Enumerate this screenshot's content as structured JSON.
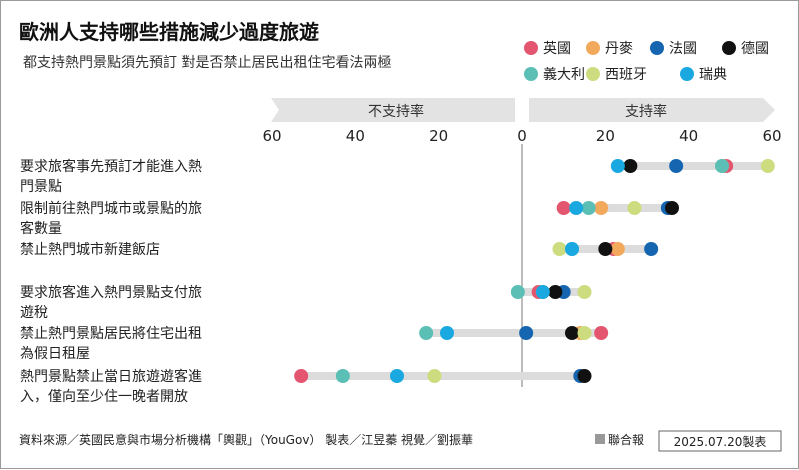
{
  "header": {
    "title": "歐洲人支持哪些措施減少過度旅遊",
    "subtitle": "都支持熱門景點須先預訂  對是否禁止居民出租住宅看法兩極"
  },
  "colors": {
    "英國": "#e4566f",
    "丹麥": "#f3a95c",
    "法國": "#1565b0",
    "德國": "#111111",
    "義大利": "#5bbfb5",
    "西班牙": "#cddc7f",
    "瑞典": "#1aa8e0",
    "track": "#dcdcdc",
    "banner": "#e3e3e3"
  },
  "chart_data": {
    "type": "scatter",
    "title": "歐洲人支持哪些措施減少過度旅遊",
    "subtitle": "都支持熱門景點須先預訂  對是否禁止居民出租住宅看法兩極",
    "x_axis": {
      "range": [
        -60,
        60
      ],
      "ticks": [
        -60,
        -40,
        -20,
        0,
        20,
        40,
        60
      ],
      "tick_labels": [
        "60",
        "40",
        "20",
        "0",
        "20",
        "40",
        "60"
      ],
      "left_banner": "不支持率",
      "right_banner": "支持率"
    },
    "legend": {
      "placement": "top-right",
      "entries": [
        "英國",
        "丹麥",
        "法國",
        "德國",
        "義大利",
        "西班牙",
        "瑞典"
      ]
    },
    "categories": [
      {
        "line1": "要求旅客事先預訂才能進入熱",
        "line2": "門景點"
      },
      {
        "line1": "限制前往熱門城市或景點的旅",
        "line2": "客數量"
      },
      {
        "line1": "禁止熱門城市新建飯店",
        "line2": ""
      },
      {
        "line1": "要求旅客進入熱門景點支付旅",
        "line2": "遊稅"
      },
      {
        "line1": "禁止熱門景點居民將住宅出租",
        "line2": "為假日租屋"
      },
      {
        "line1": "熱門景點禁止當日旅遊遊客進",
        "line2": "入，僅向至少住一晚者開放"
      }
    ],
    "series": [
      {
        "name": "英國",
        "values": [
          49,
          10,
          22,
          4,
          19,
          -53
        ]
      },
      {
        "name": "丹麥",
        "values": [
          48,
          19,
          23,
          5,
          14,
          14
        ]
      },
      {
        "name": "法國",
        "values": [
          37,
          35,
          31,
          10,
          1,
          14
        ]
      },
      {
        "name": "德國",
        "values": [
          26,
          36,
          20,
          8,
          12,
          15
        ]
      },
      {
        "name": "義大利",
        "values": [
          48,
          16,
          12,
          -1,
          -23,
          -43
        ]
      },
      {
        "name": "西班牙",
        "values": [
          59,
          27,
          9,
          15,
          15,
          -21
        ]
      },
      {
        "name": "瑞典",
        "values": [
          23,
          13,
          12,
          5,
          -18,
          -30
        ]
      }
    ]
  },
  "footer": {
    "source": "資料來源／英國民意與市場分析機構「輿觀」（YouGov）   製表／江昱蓁   視覺／劉振華",
    "publisher": "聯合報",
    "date_stamp": "2025.07.20製表"
  }
}
